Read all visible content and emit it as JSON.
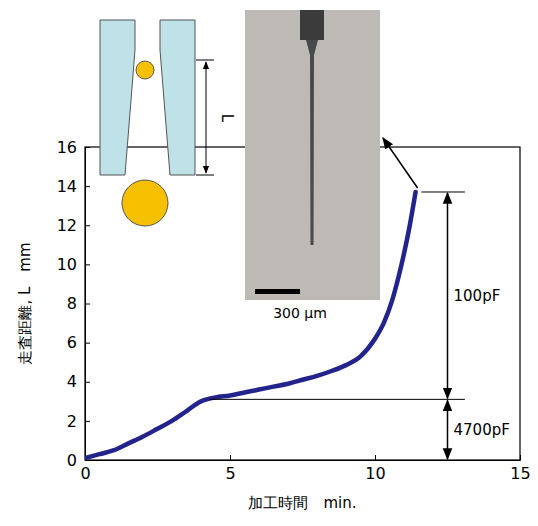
{
  "chart_data": {
    "type": "line",
    "x_label": "加工時間　min.",
    "y_label": "走査距離, L　mm",
    "x": [
      0,
      0.5,
      1,
      1.5,
      2,
      2.5,
      3,
      3.5,
      4,
      4.2,
      4.5,
      5,
      5.5,
      6,
      6.5,
      7,
      7.5,
      8,
      8.5,
      9,
      9.5,
      10,
      10.3,
      10.6,
      10.9,
      11.2,
      11.4
    ],
    "values": [
      0.1,
      0.3,
      0.5,
      0.85,
      1.2,
      1.6,
      2.0,
      2.5,
      3.0,
      3.1,
      3.2,
      3.3,
      3.45,
      3.6,
      3.75,
      3.9,
      4.1,
      4.3,
      4.55,
      4.85,
      5.3,
      6.2,
      7.0,
      8.2,
      9.9,
      12.0,
      13.7
    ],
    "color": "#23238c",
    "xlim": [
      0,
      15
    ],
    "xticks": [
      0,
      5,
      10,
      15
    ],
    "ylim": [
      0,
      16
    ],
    "yticks": [
      0,
      2,
      4,
      6,
      8,
      10,
      12,
      14,
      16
    ],
    "grid": false,
    "annotations": [
      {
        "text": "100pF",
        "y": [
          3.1,
          13.7
        ]
      },
      {
        "text": "4700pF",
        "y": [
          0,
          3.1
        ]
      }
    ],
    "photo_scale_label": "300 μm",
    "schematic_label": "L"
  }
}
